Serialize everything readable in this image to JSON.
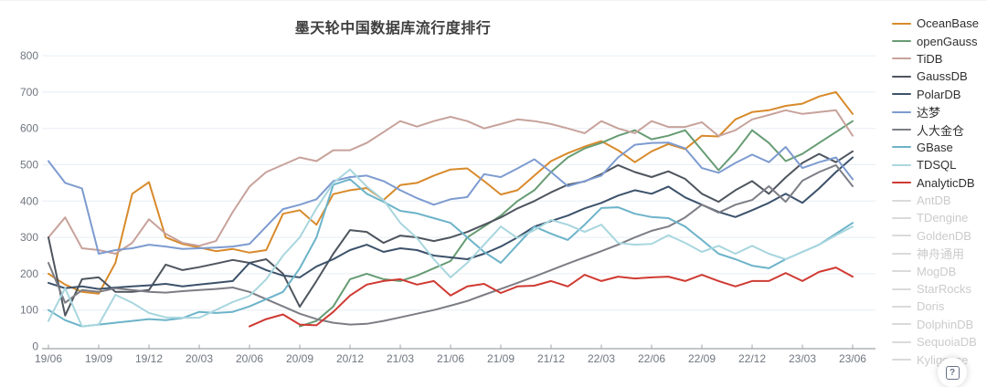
{
  "title": "墨天轮中国数据库流行度排行",
  "help_icon": "?",
  "chart_data": {
    "type": "line",
    "title": "墨天轮中国数据库流行度排行",
    "legend_position": "right",
    "grid": true,
    "ylim": [
      0,
      800
    ],
    "y_ticks": [
      0,
      100,
      200,
      300,
      400,
      500,
      600,
      700,
      800
    ],
    "x_tick_labels": [
      "19/06",
      "19/09",
      "19/12",
      "20/03",
      "20/06",
      "20/09",
      "20/12",
      "21/03",
      "21/06",
      "21/09",
      "21/12",
      "22/03",
      "22/06",
      "22/09",
      "22/12",
      "23/03",
      "23/06"
    ],
    "x": [
      "19/06",
      "19/07",
      "19/08",
      "19/09",
      "19/10",
      "19/11",
      "19/12",
      "20/01",
      "20/02",
      "20/03",
      "20/04",
      "20/05",
      "20/06",
      "20/07",
      "20/08",
      "20/09",
      "20/10",
      "20/11",
      "20/12",
      "21/01",
      "21/02",
      "21/03",
      "21/04",
      "21/05",
      "21/06",
      "21/07",
      "21/08",
      "21/09",
      "21/10",
      "21/11",
      "21/12",
      "22/01",
      "22/02",
      "22/03",
      "22/04",
      "22/05",
      "22/06",
      "22/07",
      "22/08",
      "22/09",
      "22/10",
      "22/11",
      "22/12",
      "23/01",
      "23/02",
      "23/03",
      "23/04",
      "23/05",
      "23/06"
    ],
    "series": [
      {
        "name": "OceanBase",
        "color": "#d88a2b",
        "enabled": true,
        "values": [
          200,
          170,
          150,
          145,
          230,
          420,
          452,
          300,
          282,
          272,
          262,
          268,
          258,
          265,
          365,
          375,
          335,
          419,
          430,
          436,
          403,
          444,
          450,
          470,
          487,
          490,
          455,
          418,
          430,
          470,
          510,
          532,
          550,
          565,
          540,
          507,
          537,
          557,
          543,
          580,
          578,
          625,
          645,
          650,
          662,
          668,
          688,
          700,
          640
        ]
      },
      {
        "name": "openGauss",
        "color": "#679c74",
        "enabled": true,
        "values": [
          null,
          null,
          null,
          null,
          null,
          null,
          null,
          null,
          null,
          null,
          null,
          null,
          null,
          null,
          null,
          55,
          70,
          110,
          185,
          200,
          185,
          180,
          195,
          215,
          235,
          300,
          330,
          360,
          400,
          430,
          480,
          520,
          545,
          560,
          580,
          595,
          570,
          580,
          595,
          540,
          485,
          535,
          595,
          560,
          510,
          530,
          560,
          590,
          620
        ]
      },
      {
        "name": "TiDB",
        "color": "#c7a29b",
        "enabled": true,
        "values": [
          300,
          355,
          270,
          265,
          255,
          285,
          350,
          310,
          285,
          277,
          290,
          370,
          440,
          480,
          500,
          520,
          510,
          540,
          540,
          560,
          590,
          620,
          605,
          620,
          632,
          620,
          600,
          612,
          625,
          620,
          612,
          600,
          587,
          620,
          600,
          587,
          620,
          604,
          604,
          617,
          579,
          595,
          625,
          637,
          650,
          640,
          645,
          650,
          580
        ]
      },
      {
        "name": "GaussDB",
        "color": "#4e555e",
        "enabled": true,
        "values": [
          300,
          85,
          185,
          190,
          150,
          150,
          155,
          225,
          210,
          218,
          228,
          238,
          230,
          240,
          200,
          109,
          180,
          255,
          320,
          315,
          285,
          305,
          300,
          290,
          300,
          315,
          335,
          355,
          380,
          400,
          424,
          445,
          454,
          474,
          499,
          480,
          466,
          482,
          461,
          420,
          398,
          430,
          455,
          420,
          465,
          505,
          530,
          507,
          537
        ]
      },
      {
        "name": "PolarDB",
        "color": "#3c526b",
        "enabled": true,
        "values": [
          175,
          160,
          165,
          158,
          162,
          165,
          168,
          172,
          165,
          170,
          175,
          180,
          230,
          210,
          195,
          190,
          220,
          240,
          265,
          280,
          260,
          270,
          265,
          250,
          245,
          240,
          255,
          275,
          300,
          330,
          345,
          360,
          380,
          395,
          415,
          430,
          420,
          440,
          410,
          390,
          370,
          356,
          375,
          395,
          420,
          395,
          435,
          480,
          520
        ]
      },
      {
        "name": "达梦",
        "color": "#7d9bd0",
        "enabled": true,
        "values": [
          510,
          450,
          435,
          255,
          265,
          270,
          280,
          275,
          268,
          270,
          272,
          275,
          282,
          330,
          378,
          390,
          405,
          455,
          466,
          470,
          455,
          430,
          408,
          390,
          405,
          411,
          474,
          466,
          490,
          515,
          480,
          441,
          455,
          470,
          520,
          555,
          560,
          561,
          545,
          491,
          478,
          505,
          528,
          507,
          549,
          491,
          507,
          520,
          460
        ]
      },
      {
        "name": "人大金仓",
        "color": "#7c7d85",
        "enabled": true,
        "values": [
          230,
          120,
          155,
          150,
          160,
          155,
          150,
          148,
          152,
          155,
          158,
          162,
          150,
          130,
          110,
          90,
          75,
          65,
          60,
          62,
          70,
          80,
          90,
          100,
          112,
          125,
          142,
          158,
          175,
          192,
          210,
          228,
          245,
          262,
          280,
          300,
          318,
          330,
          355,
          390,
          368,
          390,
          403,
          441,
          398,
          456,
          480,
          499,
          441
        ]
      },
      {
        "name": "GBase",
        "color": "#6cb3c9",
        "enabled": true,
        "values": [
          100,
          72,
          55,
          60,
          65,
          70,
          75,
          72,
          78,
          95,
          92,
          95,
          110,
          130,
          150,
          215,
          300,
          445,
          460,
          420,
          398,
          373,
          366,
          353,
          340,
          300,
          260,
          230,
          280,
          330,
          310,
          293,
          335,
          381,
          383,
          365,
          356,
          353,
          330,
          293,
          255,
          240,
          222,
          215,
          240,
          260,
          280,
          310,
          340
        ]
      },
      {
        "name": "TDSQL",
        "color": "#a8d6de",
        "enabled": true,
        "values": [
          70,
          160,
          55,
          60,
          142,
          120,
          92,
          80,
          79,
          79,
          100,
          122,
          139,
          185,
          250,
          300,
          380,
          450,
          487,
          440,
          403,
          340,
          298,
          240,
          190,
          230,
          280,
          330,
          298,
          320,
          348,
          335,
          315,
          335,
          285,
          280,
          282,
          306,
          285,
          260,
          277,
          255,
          277,
          255,
          240,
          260,
          280,
          306,
          330
        ]
      },
      {
        "name": "AnalyticDB",
        "color": "#cf3a32",
        "enabled": true,
        "values": [
          null,
          null,
          null,
          null,
          null,
          null,
          null,
          null,
          null,
          null,
          null,
          null,
          55,
          75,
          88,
          60,
          58,
          95,
          140,
          170,
          180,
          185,
          170,
          180,
          140,
          165,
          172,
          147,
          165,
          167,
          180,
          165,
          197,
          180,
          192,
          187,
          190,
          192,
          180,
          197,
          180,
          165,
          180,
          180,
          202,
          180,
          205,
          217,
          192
        ]
      },
      {
        "name": "AntDB",
        "color": "#dadada",
        "enabled": false,
        "values": null
      },
      {
        "name": "TDengine",
        "color": "#dadada",
        "enabled": false,
        "values": null
      },
      {
        "name": "GoldenDB",
        "color": "#dadada",
        "enabled": false,
        "values": null
      },
      {
        "name": "神舟通用",
        "color": "#dadada",
        "enabled": false,
        "values": null
      },
      {
        "name": "MogDB",
        "color": "#dadada",
        "enabled": false,
        "values": null
      },
      {
        "name": "StarRocks",
        "color": "#dadada",
        "enabled": false,
        "values": null
      },
      {
        "name": "Doris",
        "color": "#dadada",
        "enabled": false,
        "values": null
      },
      {
        "name": "DolphinDB",
        "color": "#dadada",
        "enabled": false,
        "values": null
      },
      {
        "name": "SequoiaDB",
        "color": "#dadada",
        "enabled": false,
        "values": null
      },
      {
        "name": "Kyligence",
        "color": "#dadada",
        "enabled": false,
        "values": null
      }
    ]
  }
}
